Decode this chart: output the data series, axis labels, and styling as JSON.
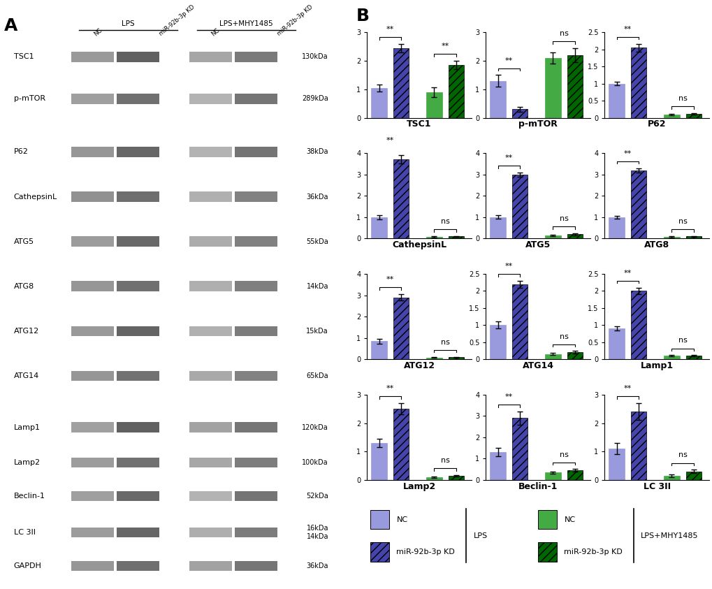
{
  "panels": [
    {
      "title": "TSC1",
      "ylim": [
        0,
        3
      ],
      "yticks": [
        0,
        1,
        2,
        3
      ],
      "values": [
        1.05,
        2.45,
        0.9,
        1.85
      ],
      "errors": [
        0.12,
        0.15,
        0.18,
        0.15
      ],
      "sig_lps": "**",
      "sig_mhy": "**"
    },
    {
      "title": "p-mTOR",
      "ylim": [
        0,
        3
      ],
      "yticks": [
        0,
        1,
        2,
        3
      ],
      "values": [
        1.3,
        0.3,
        2.1,
        2.2
      ],
      "errors": [
        0.2,
        0.08,
        0.2,
        0.25
      ],
      "sig_lps": "**",
      "sig_mhy": "ns"
    },
    {
      "title": "P62",
      "ylim": [
        0,
        2.5
      ],
      "yticks": [
        0.0,
        0.5,
        1.0,
        1.5,
        2.0,
        2.5
      ],
      "values": [
        1.0,
        2.05,
        0.1,
        0.12
      ],
      "errors": [
        0.05,
        0.12,
        0.02,
        0.02
      ],
      "sig_lps": "**",
      "sig_mhy": "ns"
    },
    {
      "title": "CathepsinL",
      "ylim": [
        0,
        4
      ],
      "yticks": [
        0,
        1,
        2,
        3,
        4
      ],
      "values": [
        1.0,
        3.7,
        0.08,
        0.1
      ],
      "errors": [
        0.1,
        0.2,
        0.02,
        0.02
      ],
      "sig_lps": "**",
      "sig_mhy": "ns"
    },
    {
      "title": "ATG5",
      "ylim": [
        0,
        4
      ],
      "yticks": [
        0,
        1,
        2,
        3,
        4
      ],
      "values": [
        1.0,
        3.0,
        0.15,
        0.2
      ],
      "errors": [
        0.08,
        0.1,
        0.03,
        0.04
      ],
      "sig_lps": "**",
      "sig_mhy": "ns"
    },
    {
      "title": "ATG8",
      "ylim": [
        0,
        4
      ],
      "yticks": [
        0,
        1,
        2,
        3,
        4
      ],
      "values": [
        1.0,
        3.2,
        0.08,
        0.1
      ],
      "errors": [
        0.06,
        0.1,
        0.02,
        0.02
      ],
      "sig_lps": "**",
      "sig_mhy": "ns"
    },
    {
      "title": "ATG12",
      "ylim": [
        0,
        4
      ],
      "yticks": [
        0,
        1,
        2,
        3,
        4
      ],
      "values": [
        0.85,
        2.9,
        0.08,
        0.1
      ],
      "errors": [
        0.12,
        0.15,
        0.02,
        0.02
      ],
      "sig_lps": "**",
      "sig_mhy": "ns"
    },
    {
      "title": "ATG14",
      "ylim": [
        0,
        2.5
      ],
      "yticks": [
        0.0,
        0.5,
        1.0,
        1.5,
        2.0,
        2.5
      ],
      "values": [
        1.0,
        2.2,
        0.15,
        0.2
      ],
      "errors": [
        0.1,
        0.1,
        0.03,
        0.04
      ],
      "sig_lps": "**",
      "sig_mhy": "ns"
    },
    {
      "title": "Lamp1",
      "ylim": [
        0,
        2.5
      ],
      "yticks": [
        0.0,
        0.5,
        1.0,
        1.5,
        2.0,
        2.5
      ],
      "values": [
        0.9,
        2.0,
        0.1,
        0.1
      ],
      "errors": [
        0.06,
        0.1,
        0.02,
        0.02
      ],
      "sig_lps": "**",
      "sig_mhy": "ns"
    },
    {
      "title": "Lamp2",
      "ylim": [
        0,
        3
      ],
      "yticks": [
        0,
        1,
        2,
        3
      ],
      "values": [
        1.3,
        2.5,
        0.1,
        0.15
      ],
      "errors": [
        0.15,
        0.2,
        0.02,
        0.03
      ],
      "sig_lps": "**",
      "sig_mhy": "ns"
    },
    {
      "title": "Beclin-1",
      "ylim": [
        0,
        4
      ],
      "yticks": [
        0,
        1,
        2,
        3,
        4
      ],
      "values": [
        1.3,
        2.9,
        0.35,
        0.45
      ],
      "errors": [
        0.2,
        0.3,
        0.06,
        0.06
      ],
      "sig_lps": "**",
      "sig_mhy": "ns"
    },
    {
      "title": "LC 3II",
      "ylim": [
        0,
        3
      ],
      "yticks": [
        0,
        1,
        2,
        3
      ],
      "values": [
        1.1,
        2.4,
        0.15,
        0.3
      ],
      "errors": [
        0.2,
        0.3,
        0.04,
        0.06
      ],
      "sig_lps": "**",
      "sig_mhy": "ns"
    }
  ],
  "colors": {
    "NC_LPS": "#9999dd",
    "KD_LPS": "#4444aa",
    "NC_MHY": "#44aa44",
    "KD_MHY": "#006600"
  },
  "proteins": [
    [
      "TSC1",
      "130kDa",
      0.93
    ],
    [
      "p-mTOR",
      "289kDa",
      0.855
    ],
    [
      "P62",
      "38kDa",
      0.76
    ],
    [
      "CathepsinL",
      "36kDa",
      0.68
    ],
    [
      "ATG5",
      "55kDa",
      0.6
    ],
    [
      "ATG8",
      "14kDa",
      0.52
    ],
    [
      "ATG12",
      "15kDa",
      0.44
    ],
    [
      "ATG14",
      "65kDa",
      0.36
    ],
    [
      "Lamp1",
      "120kDa",
      0.268
    ],
    [
      "Lamp2",
      "100kDa",
      0.205
    ],
    [
      "Beclin-1",
      "52kDa",
      0.145
    ],
    [
      "LC 3II",
      "16kDa\n14kDa",
      0.08
    ],
    [
      "GAPDH",
      "36kDa",
      0.02
    ]
  ],
  "background_color": "#ffffff"
}
